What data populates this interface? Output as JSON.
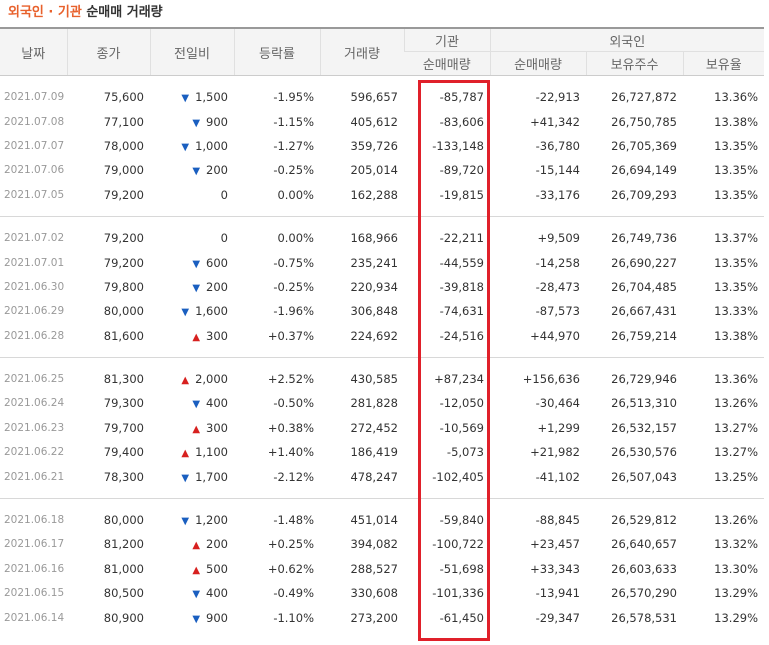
{
  "title": {
    "highlight": "외국인 · 기관",
    "rest": "순매매 거래량"
  },
  "headers": {
    "date": "날짜",
    "close": "종가",
    "change": "전일비",
    "rate": "등락률",
    "volume": "거래량",
    "inst_group": "기관",
    "inst_net": "순매매량",
    "foreign_group": "외국인",
    "foreign_net": "순매매량",
    "foreign_holdings": "보유주수",
    "foreign_ratio": "보유율"
  },
  "colors": {
    "up": "#d7201f",
    "down": "#1a5fc0",
    "title_accent": "#e8612c",
    "highlight_box": "#e0202a"
  },
  "icons": {
    "up": "▲",
    "down": "▼"
  },
  "groups": [
    [
      {
        "date": "2021.07.09",
        "close": "75,600",
        "dir": "down",
        "change": "1,500",
        "rate": "-1.95%",
        "volume": "596,657",
        "inst": "-85,787",
        "foreign": "-22,913",
        "holdings": "26,727,872",
        "ratio": "13.36%"
      },
      {
        "date": "2021.07.08",
        "close": "77,100",
        "dir": "down",
        "change": "900",
        "rate": "-1.15%",
        "volume": "405,612",
        "inst": "-83,606",
        "foreign": "+41,342",
        "holdings": "26,750,785",
        "ratio": "13.38%"
      },
      {
        "date": "2021.07.07",
        "close": "78,000",
        "dir": "down",
        "change": "1,000",
        "rate": "-1.27%",
        "volume": "359,726",
        "inst": "-133,148",
        "foreign": "-36,780",
        "holdings": "26,705,369",
        "ratio": "13.35%"
      },
      {
        "date": "2021.07.06",
        "close": "79,000",
        "dir": "down",
        "change": "200",
        "rate": "-0.25%",
        "volume": "205,014",
        "inst": "-89,720",
        "foreign": "-15,144",
        "holdings": "26,694,149",
        "ratio": "13.35%"
      },
      {
        "date": "2021.07.05",
        "close": "79,200",
        "dir": "flat",
        "change": "0",
        "rate": "0.00%",
        "volume": "162,288",
        "inst": "-19,815",
        "foreign": "-33,176",
        "holdings": "26,709,293",
        "ratio": "13.35%"
      }
    ],
    [
      {
        "date": "2021.07.02",
        "close": "79,200",
        "dir": "flat",
        "change": "0",
        "rate": "0.00%",
        "volume": "168,966",
        "inst": "-22,211",
        "foreign": "+9,509",
        "holdings": "26,749,736",
        "ratio": "13.37%"
      },
      {
        "date": "2021.07.01",
        "close": "79,200",
        "dir": "down",
        "change": "600",
        "rate": "-0.75%",
        "volume": "235,241",
        "inst": "-44,559",
        "foreign": "-14,258",
        "holdings": "26,690,227",
        "ratio": "13.35%"
      },
      {
        "date": "2021.06.30",
        "close": "79,800",
        "dir": "down",
        "change": "200",
        "rate": "-0.25%",
        "volume": "220,934",
        "inst": "-39,818",
        "foreign": "-28,473",
        "holdings": "26,704,485",
        "ratio": "13.35%"
      },
      {
        "date": "2021.06.29",
        "close": "80,000",
        "dir": "down",
        "change": "1,600",
        "rate": "-1.96%",
        "volume": "306,848",
        "inst": "-74,631",
        "foreign": "-87,573",
        "holdings": "26,667,431",
        "ratio": "13.33%"
      },
      {
        "date": "2021.06.28",
        "close": "81,600",
        "dir": "up",
        "change": "300",
        "rate": "+0.37%",
        "volume": "224,692",
        "inst": "-24,516",
        "foreign": "+44,970",
        "holdings": "26,759,214",
        "ratio": "13.38%"
      }
    ],
    [
      {
        "date": "2021.06.25",
        "close": "81,300",
        "dir": "up",
        "change": "2,000",
        "rate": "+2.52%",
        "volume": "430,585",
        "inst": "+87,234",
        "foreign": "+156,636",
        "holdings": "26,729,946",
        "ratio": "13.36%"
      },
      {
        "date": "2021.06.24",
        "close": "79,300",
        "dir": "down",
        "change": "400",
        "rate": "-0.50%",
        "volume": "281,828",
        "inst": "-12,050",
        "foreign": "-30,464",
        "holdings": "26,513,310",
        "ratio": "13.26%"
      },
      {
        "date": "2021.06.23",
        "close": "79,700",
        "dir": "up",
        "change": "300",
        "rate": "+0.38%",
        "volume": "272,452",
        "inst": "-10,569",
        "foreign": "+1,299",
        "holdings": "26,532,157",
        "ratio": "13.27%"
      },
      {
        "date": "2021.06.22",
        "close": "79,400",
        "dir": "up",
        "change": "1,100",
        "rate": "+1.40%",
        "volume": "186,419",
        "inst": "-5,073",
        "foreign": "+21,982",
        "holdings": "26,530,576",
        "ratio": "13.27%"
      },
      {
        "date": "2021.06.21",
        "close": "78,300",
        "dir": "down",
        "change": "1,700",
        "rate": "-2.12%",
        "volume": "478,247",
        "inst": "-102,405",
        "foreign": "-41,102",
        "holdings": "26,507,043",
        "ratio": "13.25%"
      }
    ],
    [
      {
        "date": "2021.06.18",
        "close": "80,000",
        "dir": "down",
        "change": "1,200",
        "rate": "-1.48%",
        "volume": "451,014",
        "inst": "-59,840",
        "foreign": "-88,845",
        "holdings": "26,529,812",
        "ratio": "13.26%"
      },
      {
        "date": "2021.06.17",
        "close": "81,200",
        "dir": "up",
        "change": "200",
        "rate": "+0.25%",
        "volume": "394,082",
        "inst": "-100,722",
        "foreign": "+23,457",
        "holdings": "26,640,657",
        "ratio": "13.32%"
      },
      {
        "date": "2021.06.16",
        "close": "81,000",
        "dir": "up",
        "change": "500",
        "rate": "+0.62%",
        "volume": "288,527",
        "inst": "-51,698",
        "foreign": "+33,343",
        "holdings": "26,603,633",
        "ratio": "13.30%"
      },
      {
        "date": "2021.06.15",
        "close": "80,500",
        "dir": "down",
        "change": "400",
        "rate": "-0.49%",
        "volume": "330,608",
        "inst": "-101,336",
        "foreign": "-13,941",
        "holdings": "26,570,290",
        "ratio": "13.29%"
      },
      {
        "date": "2021.06.14",
        "close": "80,900",
        "dir": "down",
        "change": "900",
        "rate": "-1.10%",
        "volume": "273,200",
        "inst": "-61,450",
        "foreign": "-29,347",
        "holdings": "26,578,531",
        "ratio": "13.29%"
      }
    ]
  ]
}
